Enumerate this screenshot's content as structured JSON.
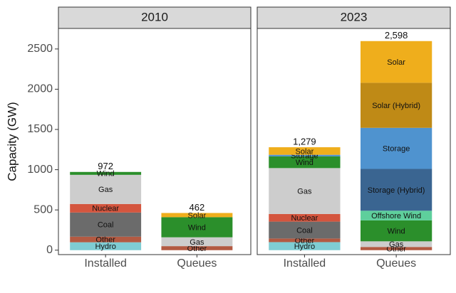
{
  "chart_data": [
    {
      "type": "bar",
      "title": "2010",
      "ylabel": "Capacity (GW)",
      "stacked": true,
      "categories": [
        "Installed",
        "Queues"
      ],
      "ylim": [
        -55,
        2755
      ],
      "yticks": [
        0,
        500,
        1000,
        1500,
        2000,
        2500
      ],
      "series": [
        {
          "name": "Hydro",
          "color": "#7fcdd3",
          "values": [
            98,
            null
          ]
        },
        {
          "name": "Other",
          "color": "#b35a42",
          "values": [
            70,
            50
          ]
        },
        {
          "name": "Coal",
          "color": "#6b6b6b",
          "values": [
            300,
            null
          ]
        },
        {
          "name": "Nuclear",
          "color": "#d4553e",
          "values": [
            106,
            null
          ]
        },
        {
          "name": "Gas",
          "color": "#cdcdcd",
          "values": [
            362,
            110
          ]
        },
        {
          "name": "Wind",
          "color": "#2b8f2b",
          "values": [
            36,
            250
          ]
        },
        {
          "name": "Solar",
          "color": "#efae1c",
          "values": [
            null,
            52
          ]
        }
      ],
      "totals": [
        972,
        462
      ]
    },
    {
      "type": "bar",
      "title": "2023",
      "stacked": true,
      "categories": [
        "Installed",
        "Queues"
      ],
      "series": [
        {
          "name": "Hydro",
          "color": "#7fcdd3",
          "values": [
            100,
            null
          ]
        },
        {
          "name": "Other",
          "color": "#b35a42",
          "values": [
            45,
            40
          ]
        },
        {
          "name": "Coal",
          "color": "#6b6b6b",
          "values": [
            210,
            null
          ]
        },
        {
          "name": "Nuclear",
          "color": "#d4553e",
          "values": [
            95,
            null
          ]
        },
        {
          "name": "Gas",
          "color": "#cdcdcd",
          "values": [
            570,
            70
          ]
        },
        {
          "name": "Wind",
          "color": "#2b8f2b",
          "values": [
            145,
            260
          ]
        },
        {
          "name": "Offshore Wind",
          "color": "#5ecf9c",
          "values": [
            null,
            120
          ]
        },
        {
          "name": "Storage (Hybrid)",
          "color": "#3a6591",
          "values": [
            null,
            520
          ]
        },
        {
          "name": "Storage",
          "color": "#4f93cf",
          "values": [
            20,
            510
          ]
        },
        {
          "name": "Solar (Hybrid)",
          "color": "#bf8a16",
          "values": [
            null,
            560
          ]
        },
        {
          "name": "Solar",
          "color": "#efae1c",
          "values": [
            94,
            518
          ]
        }
      ],
      "totals": [
        {
          "value": 1279,
          "label": "1,279"
        },
        {
          "value": 2598,
          "label": "2,598"
        }
      ]
    }
  ]
}
